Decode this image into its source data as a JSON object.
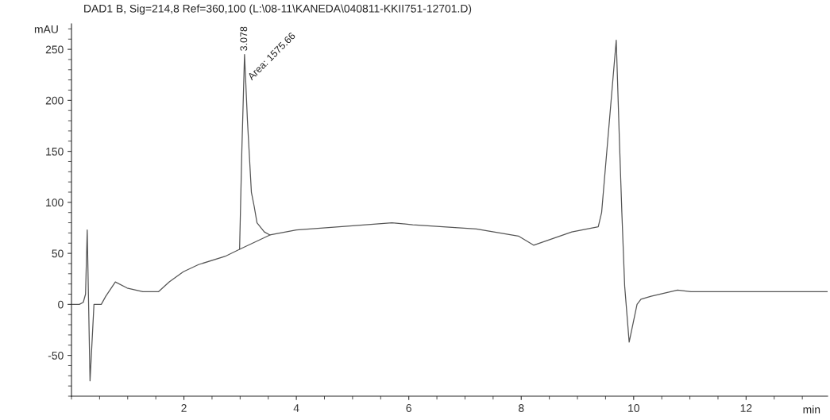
{
  "chart_data": {
    "type": "line",
    "title": "DAD1 B, Sig=214,8 Ref=360,100 (L:\\08-11\\KANEDA\\040811-KKII751-12701.D)",
    "xlabel": "min",
    "ylabel": "mAU",
    "series": [
      {
        "color": "#555555",
        "x": [
          0,
          0.14,
          0.21,
          0.25,
          0.28,
          0.33,
          0.4,
          0.53,
          0.61,
          0.78,
          0.99,
          1.27,
          1.55,
          1.74,
          1.99,
          2.26,
          2.73,
          2.99,
          3.03,
          3.078,
          3.13,
          3.2,
          3.25,
          3.3,
          3.43,
          3.53,
          4,
          5,
          5.7,
          6.07,
          7.2,
          7.95,
          8.22,
          8.9,
          9.37,
          9.43,
          9.53,
          9.69,
          9.75,
          9.79,
          9.84,
          9.92,
          10.06,
          10.13,
          10.31,
          10.78,
          11.02,
          13.45
        ],
        "values": [
          0,
          0,
          2,
          10,
          73,
          -75,
          0,
          0,
          8,
          22,
          16,
          12.5,
          12.5,
          22,
          32,
          39,
          47,
          54,
          150,
          245,
          180,
          110,
          96,
          80,
          71,
          68,
          73,
          77,
          80,
          78,
          74,
          67,
          58,
          71,
          76,
          90,
          155,
          259,
          155,
          90,
          18,
          -37,
          0,
          5,
          8,
          14,
          12.5,
          12.5
        ]
      },
      {
        "color": "#555555",
        "x": [
          2.99,
          3.53
        ],
        "values": [
          54,
          68
        ]
      }
    ],
    "annotations": [
      {
        "text": "3.078",
        "x": 3.078,
        "y": 245
      },
      "Area: 1575.66"
    ],
    "xlim": [
      0,
      13.45
    ],
    "ylim": [
      -90,
      275
    ],
    "xticks": [
      2,
      4,
      6,
      8,
      10,
      12
    ],
    "yticks": [
      -50,
      0,
      50,
      100,
      150,
      200,
      250
    ],
    "grid": false
  }
}
